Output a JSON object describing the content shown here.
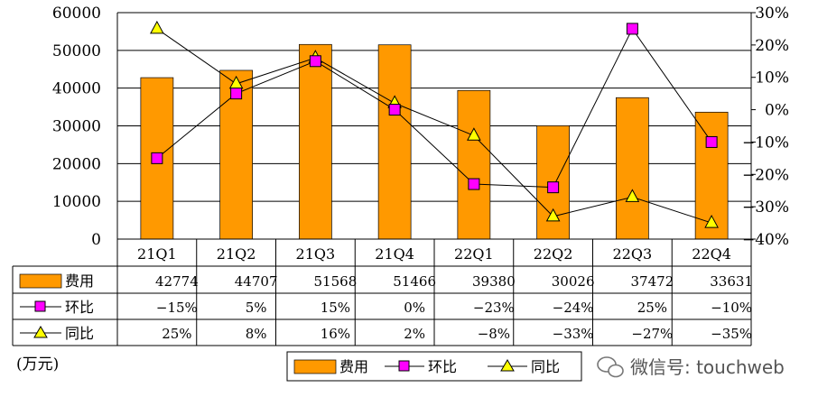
{
  "chart_data": {
    "type": "bar",
    "categories": [
      "21Q1",
      "21Q2",
      "21Q3",
      "21Q4",
      "22Q1",
      "22Q2",
      "22Q3",
      "22Q4"
    ],
    "series": [
      {
        "name": "费用",
        "type": "bar",
        "axis": "left",
        "values": [
          42774,
          44707,
          51568,
          51466,
          39380,
          30026,
          37472,
          33631
        ],
        "labels": [
          "42774",
          "44707",
          "51568",
          "51466",
          "39380",
          "30026",
          "37472",
          "33631"
        ]
      },
      {
        "name": "环比",
        "type": "line",
        "axis": "right",
        "values": [
          -15,
          5,
          15,
          0,
          -23,
          -24,
          25,
          -10
        ],
        "labels": [
          "−15%",
          "5%",
          "15%",
          "0%",
          "−23%",
          "−24%",
          "25%",
          "−10%"
        ]
      },
      {
        "name": "同比",
        "type": "line",
        "axis": "right",
        "values": [
          25,
          8,
          16,
          2,
          -8,
          -33,
          -27,
          -35
        ],
        "labels": [
          "25%",
          "8%",
          "16%",
          "2%",
          "−8%",
          "−33%",
          "−27%",
          "−35%"
        ]
      }
    ],
    "ylim_left": [
      0,
      60000
    ],
    "yticks_left": [
      "0",
      "10000",
      "20000",
      "30000",
      "40000",
      "50000",
      "60000"
    ],
    "ylim_right": [
      -40,
      30
    ],
    "yticks_right": [
      "30%",
      "20%",
      "10%",
      "0%",
      "−10%",
      "−20%",
      "−30%",
      "−40%"
    ],
    "unit_label": "(万元)",
    "legend": [
      "费用",
      "环比",
      "同比"
    ],
    "watermark": "微信号: touchweb",
    "colors": {
      "bar": "#FF9900",
      "qoq_marker": "#FF00FF",
      "yoy_marker": "#FFFF00",
      "line": "#000000"
    }
  }
}
